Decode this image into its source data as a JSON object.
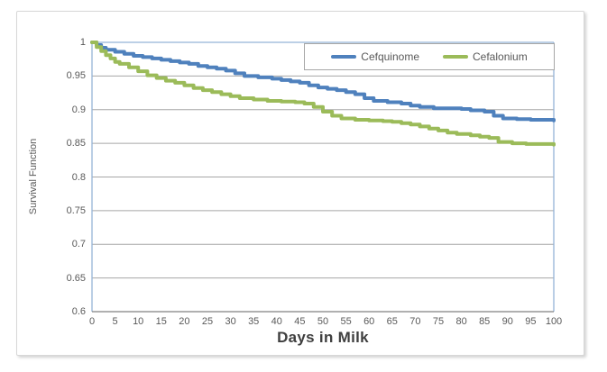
{
  "figure": {
    "background_color": "#ffffff",
    "frame_border_color": "#d7d7d7"
  },
  "chart_data": {
    "type": "line",
    "subtype": "step-after",
    "title": "",
    "xlabel": "Days in Milk",
    "ylabel": "Survival Function",
    "xlim": [
      0,
      100
    ],
    "ylim": [
      0.6,
      1.0
    ],
    "x_ticks": [
      0,
      5,
      10,
      15,
      20,
      25,
      30,
      35,
      40,
      45,
      50,
      55,
      60,
      65,
      70,
      75,
      80,
      85,
      90,
      95,
      100
    ],
    "y_ticks": [
      {
        "value": 1.0,
        "label": "1"
      },
      {
        "value": 0.95,
        "label": "0.95"
      },
      {
        "value": 0.9,
        "label": "0.9"
      },
      {
        "value": 0.85,
        "label": "0.85"
      },
      {
        "value": 0.8,
        "label": "0.8"
      },
      {
        "value": 0.75,
        "label": "0.75"
      },
      {
        "value": 0.7,
        "label": "0.7"
      },
      {
        "value": 0.65,
        "label": "0.65"
      },
      {
        "value": 0.6,
        "label": "0.6"
      }
    ],
    "grid": "horizontal",
    "gridline_color": "#a6a6a6",
    "plot_border_color": "#95b3d7",
    "axis_line_color": "#808080",
    "tick_text_color": "#595959",
    "legend_position": "top-inside",
    "series": [
      {
        "name": "Cefquinome",
        "color": "#4f81bd",
        "points": [
          [
            0,
            1.0
          ],
          [
            1,
            0.996
          ],
          [
            2,
            0.992
          ],
          [
            3,
            0.989
          ],
          [
            5,
            0.986
          ],
          [
            7,
            0.983
          ],
          [
            9,
            0.98
          ],
          [
            11,
            0.978
          ],
          [
            13,
            0.976
          ],
          [
            15,
            0.974
          ],
          [
            17,
            0.972
          ],
          [
            19,
            0.97
          ],
          [
            21,
            0.968
          ],
          [
            23,
            0.965
          ],
          [
            25,
            0.963
          ],
          [
            27,
            0.961
          ],
          [
            29,
            0.958
          ],
          [
            31,
            0.954
          ],
          [
            33,
            0.95
          ],
          [
            36,
            0.948
          ],
          [
            39,
            0.946
          ],
          [
            41,
            0.944
          ],
          [
            43,
            0.942
          ],
          [
            45,
            0.94
          ],
          [
            47,
            0.936
          ],
          [
            49,
            0.933
          ],
          [
            51,
            0.931
          ],
          [
            53,
            0.929
          ],
          [
            55,
            0.926
          ],
          [
            57,
            0.923
          ],
          [
            59,
            0.917
          ],
          [
            61,
            0.913
          ],
          [
            64,
            0.911
          ],
          [
            67,
            0.909
          ],
          [
            69,
            0.906
          ],
          [
            71,
            0.904
          ],
          [
            74,
            0.902
          ],
          [
            80,
            0.901
          ],
          [
            82,
            0.899
          ],
          [
            85,
            0.897
          ],
          [
            87,
            0.891
          ],
          [
            89,
            0.887
          ],
          [
            92,
            0.886
          ],
          [
            95,
            0.885
          ],
          [
            100,
            0.884
          ]
        ]
      },
      {
        "name": "Cefalonium",
        "color": "#9bbb59",
        "points": [
          [
            0,
            1.0
          ],
          [
            1,
            0.993
          ],
          [
            2,
            0.987
          ],
          [
            3,
            0.981
          ],
          [
            4,
            0.976
          ],
          [
            5,
            0.971
          ],
          [
            6,
            0.968
          ],
          [
            8,
            0.963
          ],
          [
            10,
            0.957
          ],
          [
            12,
            0.951
          ],
          [
            14,
            0.947
          ],
          [
            16,
            0.943
          ],
          [
            18,
            0.94
          ],
          [
            20,
            0.936
          ],
          [
            22,
            0.932
          ],
          [
            24,
            0.929
          ],
          [
            26,
            0.926
          ],
          [
            28,
            0.923
          ],
          [
            30,
            0.92
          ],
          [
            32,
            0.917
          ],
          [
            35,
            0.915
          ],
          [
            38,
            0.913
          ],
          [
            41,
            0.912
          ],
          [
            44,
            0.911
          ],
          [
            46,
            0.909
          ],
          [
            48,
            0.904
          ],
          [
            50,
            0.897
          ],
          [
            52,
            0.891
          ],
          [
            54,
            0.887
          ],
          [
            57,
            0.885
          ],
          [
            60,
            0.884
          ],
          [
            63,
            0.883
          ],
          [
            65,
            0.882
          ],
          [
            67,
            0.88
          ],
          [
            69,
            0.878
          ],
          [
            71,
            0.875
          ],
          [
            73,
            0.872
          ],
          [
            75,
            0.869
          ],
          [
            77,
            0.866
          ],
          [
            79,
            0.864
          ],
          [
            82,
            0.862
          ],
          [
            84,
            0.86
          ],
          [
            86,
            0.858
          ],
          [
            88,
            0.852
          ],
          [
            91,
            0.85
          ],
          [
            94,
            0.849
          ],
          [
            100,
            0.848
          ]
        ]
      }
    ]
  }
}
